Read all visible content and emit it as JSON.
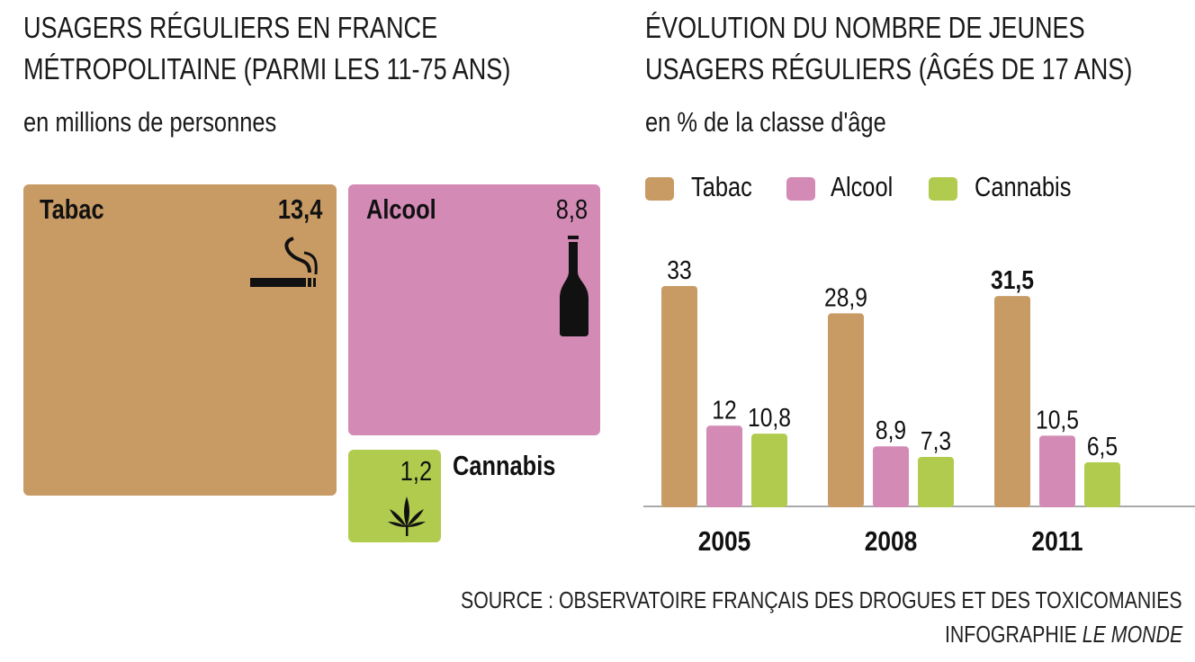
{
  "colors": {
    "tabac": "#C89B65",
    "alcool": "#D38AB5",
    "cannabis": "#B0CB4E",
    "axis": "#aaaaaa"
  },
  "left": {
    "title_line1": "USAGERS RÉGULIERS EN FRANCE",
    "title_line2": "MÉTROPOLITAINE (PARMI LES 11-75 ANS)",
    "subtitle": "en millions de personnes",
    "items": [
      {
        "label": "Tabac",
        "value": "13,4",
        "icon": "cigarette-icon"
      },
      {
        "label": "Alcool",
        "value": "8,8",
        "icon": "bottle-icon"
      },
      {
        "label": "Cannabis",
        "value": "1,2",
        "icon": "cannabis-leaf-icon"
      }
    ]
  },
  "chart_data": {
    "type": "bar",
    "title": "ÉVOLUTION DU NOMBRE DE JEUNES USAGERS RÉGULIERS (ÂGÉS DE 17 ANS)",
    "title_line1": "ÉVOLUTION DU NOMBRE DE JEUNES",
    "title_line2": "USAGERS RÉGULIERS (ÂGÉS DE 17 ANS)",
    "subtitle": "en % de la classe d'âge",
    "categories": [
      "2005",
      "2008",
      "2011"
    ],
    "series": [
      {
        "name": "Tabac",
        "values": [
          33,
          28.9,
          31.5
        ],
        "labels": [
          "33",
          "28,9",
          "31,5"
        ]
      },
      {
        "name": "Alcool",
        "values": [
          12,
          8.9,
          10.5
        ],
        "labels": [
          "12",
          "8,9",
          "10,5"
        ]
      },
      {
        "name": "Cannabis",
        "values": [
          10.8,
          7.3,
          6.5
        ],
        "labels": [
          "10,8",
          "7,3",
          "6,5"
        ]
      }
    ],
    "legend": "top-left",
    "grid": false,
    "ylim": [
      0,
      33
    ]
  },
  "footer": {
    "source": "SOURCE : OBSERVATOIRE FRANÇAIS DES DROGUES ET DES TOXICOMANIES",
    "credit_prefix": "INFOGRAPHIE ",
    "credit_brand": "LE MONDE"
  }
}
